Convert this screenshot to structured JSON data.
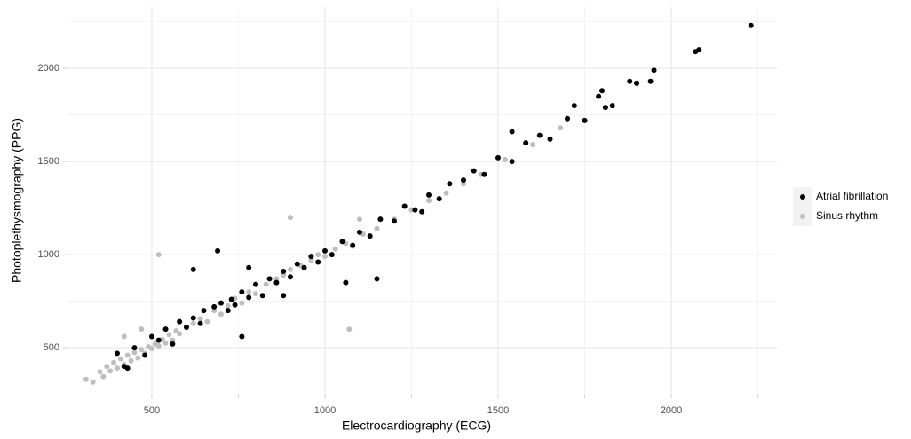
{
  "chart_data": {
    "type": "scatter",
    "x_label": "Electrocardiography (ECG)",
    "y_label": "Photoplethysmography (PPG)",
    "xlim": [
      254,
      2305
    ],
    "ylim": [
      248,
      2329
    ],
    "xticks": [
      500,
      1000,
      1500,
      2000
    ],
    "yticks": [
      500,
      1000,
      1500,
      2000
    ],
    "xminor": [
      750,
      1250,
      1750,
      2250
    ],
    "yminor": [
      750,
      1250,
      1750,
      2250
    ],
    "grid": true,
    "legend": "right",
    "series": [
      {
        "name": "Atrial fibrillation",
        "color": "#000000",
        "x": [
          400,
          420,
          450,
          480,
          500,
          520,
          540,
          560,
          580,
          600,
          620,
          640,
          650,
          680,
          700,
          720,
          730,
          740,
          760,
          780,
          800,
          820,
          840,
          860,
          880,
          900,
          920,
          940,
          960,
          980,
          1000,
          1020,
          1050,
          1080,
          1100,
          1130,
          1160,
          1200,
          1230,
          1260,
          1300,
          1330,
          1360,
          1400,
          1430,
          1460,
          1500,
          1540,
          1580,
          1620,
          1650,
          1700,
          1720,
          1750,
          1790,
          1800,
          1810,
          1830,
          1880,
          1900,
          1940,
          1950,
          2070,
          2080,
          2230,
          690,
          760,
          1060,
          620,
          1280,
          1540,
          430,
          780,
          1150,
          880
        ],
        "values": [
          470,
          400,
          500,
          460,
          560,
          540,
          600,
          520,
          640,
          610,
          660,
          630,
          700,
          720,
          740,
          700,
          760,
          730,
          800,
          770,
          840,
          780,
          870,
          850,
          910,
          880,
          950,
          930,
          990,
          960,
          1020,
          1000,
          1070,
          1050,
          1120,
          1100,
          1190,
          1180,
          1260,
          1240,
          1320,
          1300,
          1380,
          1400,
          1450,
          1430,
          1520,
          1500,
          1600,
          1640,
          1620,
          1730,
          1800,
          1720,
          1850,
          1880,
          1790,
          1800,
          1930,
          1920,
          1930,
          1990,
          2090,
          2100,
          2230,
          1020,
          560,
          850,
          920,
          1230,
          1660,
          390,
          930,
          870,
          780
        ]
      },
      {
        "name": "Sinus rhythm",
        "color": "#bebebe",
        "x": [
          310,
          330,
          350,
          360,
          370,
          380,
          390,
          400,
          410,
          420,
          430,
          440,
          450,
          460,
          470,
          480,
          490,
          500,
          510,
          520,
          530,
          540,
          550,
          560,
          570,
          580,
          600,
          620,
          640,
          660,
          680,
          700,
          720,
          740,
          760,
          780,
          800,
          830,
          860,
          880,
          900,
          930,
          960,
          980,
          1000,
          1030,
          1060,
          1080,
          1110,
          1150,
          1200,
          1250,
          1300,
          1350,
          1400,
          1450,
          1520,
          1600,
          1680,
          1750,
          520,
          1070,
          470,
          900,
          1100,
          420
        ],
        "values": [
          330,
          315,
          370,
          345,
          400,
          375,
          420,
          390,
          440,
          410,
          460,
          430,
          475,
          445,
          490,
          470,
          505,
          495,
          520,
          510,
          545,
          525,
          570,
          540,
          590,
          575,
          610,
          630,
          655,
          640,
          700,
          680,
          725,
          765,
          740,
          800,
          790,
          840,
          870,
          890,
          920,
          940,
          970,
          1000,
          990,
          1030,
          1060,
          1045,
          1110,
          1140,
          1190,
          1240,
          1290,
          1330,
          1380,
          1430,
          1510,
          1590,
          1680,
          1720,
          1000,
          600,
          600,
          1200,
          1190,
          560
        ]
      }
    ]
  }
}
